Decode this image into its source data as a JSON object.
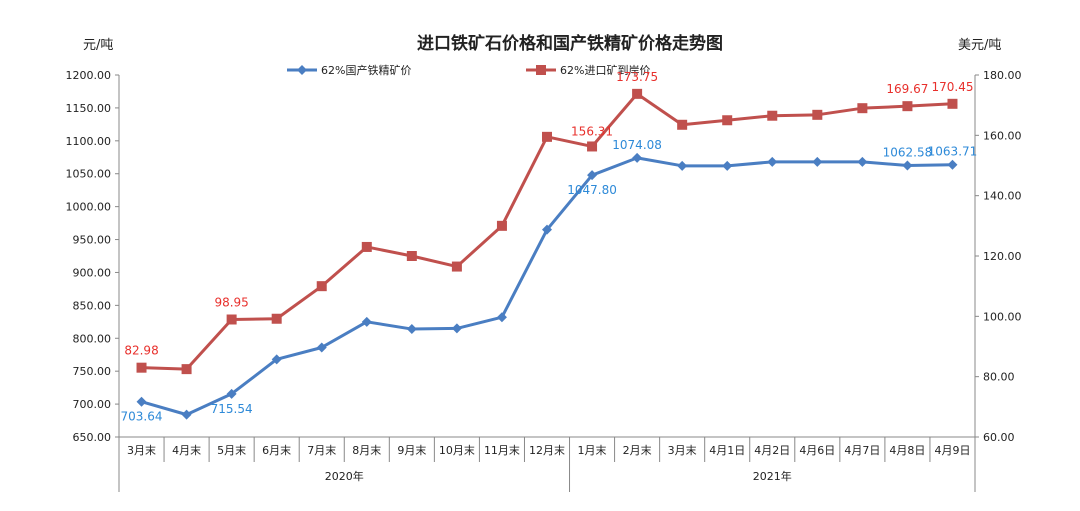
{
  "chart_data": {
    "type": "line",
    "title": "进口铁矿石价格和国产铁精矿价格走势图",
    "left_unit": "元/吨",
    "right_unit": "美元/吨",
    "categories": [
      "3月末",
      "4月末",
      "5月末",
      "6月末",
      "7月末",
      "8月末",
      "9月末",
      "10月末",
      "11月末",
      "12月末",
      "1月末",
      "2月末",
      "3月末",
      "4月1日",
      "4月2日",
      "4月6日",
      "4月7日",
      "4月8日",
      "4月9日"
    ],
    "years": [
      {
        "label": "2020年",
        "from": 0,
        "to": 9
      },
      {
        "label": "2021年",
        "from": 10,
        "to": 18
      }
    ],
    "left_axis": {
      "min": 650,
      "max": 1200,
      "step": 50,
      "ticks": [
        "650.00",
        "700.00",
        "750.00",
        "800.00",
        "850.00",
        "900.00",
        "950.00",
        "1000.00",
        "1050.00",
        "1100.00",
        "1150.00",
        "1200.00"
      ]
    },
    "right_axis": {
      "min": 60,
      "max": 180,
      "step": 20,
      "ticks": [
        "60.00",
        "80.00",
        "100.00",
        "120.00",
        "140.00",
        "160.00",
        "180.00"
      ]
    },
    "series": [
      {
        "name": "62%国产铁精矿价",
        "axis": "left",
        "color": "#4a7ec2",
        "marker": "diamond",
        "values": [
          703.64,
          684,
          715.54,
          768,
          786,
          825,
          814,
          815,
          832,
          965,
          1047.8,
          1074.08,
          1062,
          1062,
          1068,
          1068,
          1068,
          1062.58,
          1063.71
        ],
        "labels": [
          {
            "i": 0,
            "text": "703.64"
          },
          {
            "i": 2,
            "text": "715.54"
          },
          {
            "i": 10,
            "text": "1047.80"
          },
          {
            "i": 11,
            "text": "1074.08"
          },
          {
            "i": 17,
            "text": "1062.58"
          },
          {
            "i": 18,
            "text": "1063.71"
          }
        ]
      },
      {
        "name": "62%进口矿到岸价",
        "axis": "right",
        "color": "#c0504d",
        "marker": "square",
        "values": [
          82.98,
          82.5,
          98.95,
          99.2,
          110,
          123,
          120,
          116.5,
          130,
          159.5,
          156.31,
          173.75,
          163.5,
          165,
          166.5,
          166.8,
          169,
          169.67,
          170.45
        ],
        "labels": [
          {
            "i": 0,
            "text": "82.98"
          },
          {
            "i": 2,
            "text": "98.95"
          },
          {
            "i": 10,
            "text": "156.31"
          },
          {
            "i": 11,
            "text": "173.75"
          },
          {
            "i": 17,
            "text": "169.67"
          },
          {
            "i": 18,
            "text": "170.45"
          }
        ]
      }
    ],
    "legend_position": "top-center",
    "grid": false
  }
}
